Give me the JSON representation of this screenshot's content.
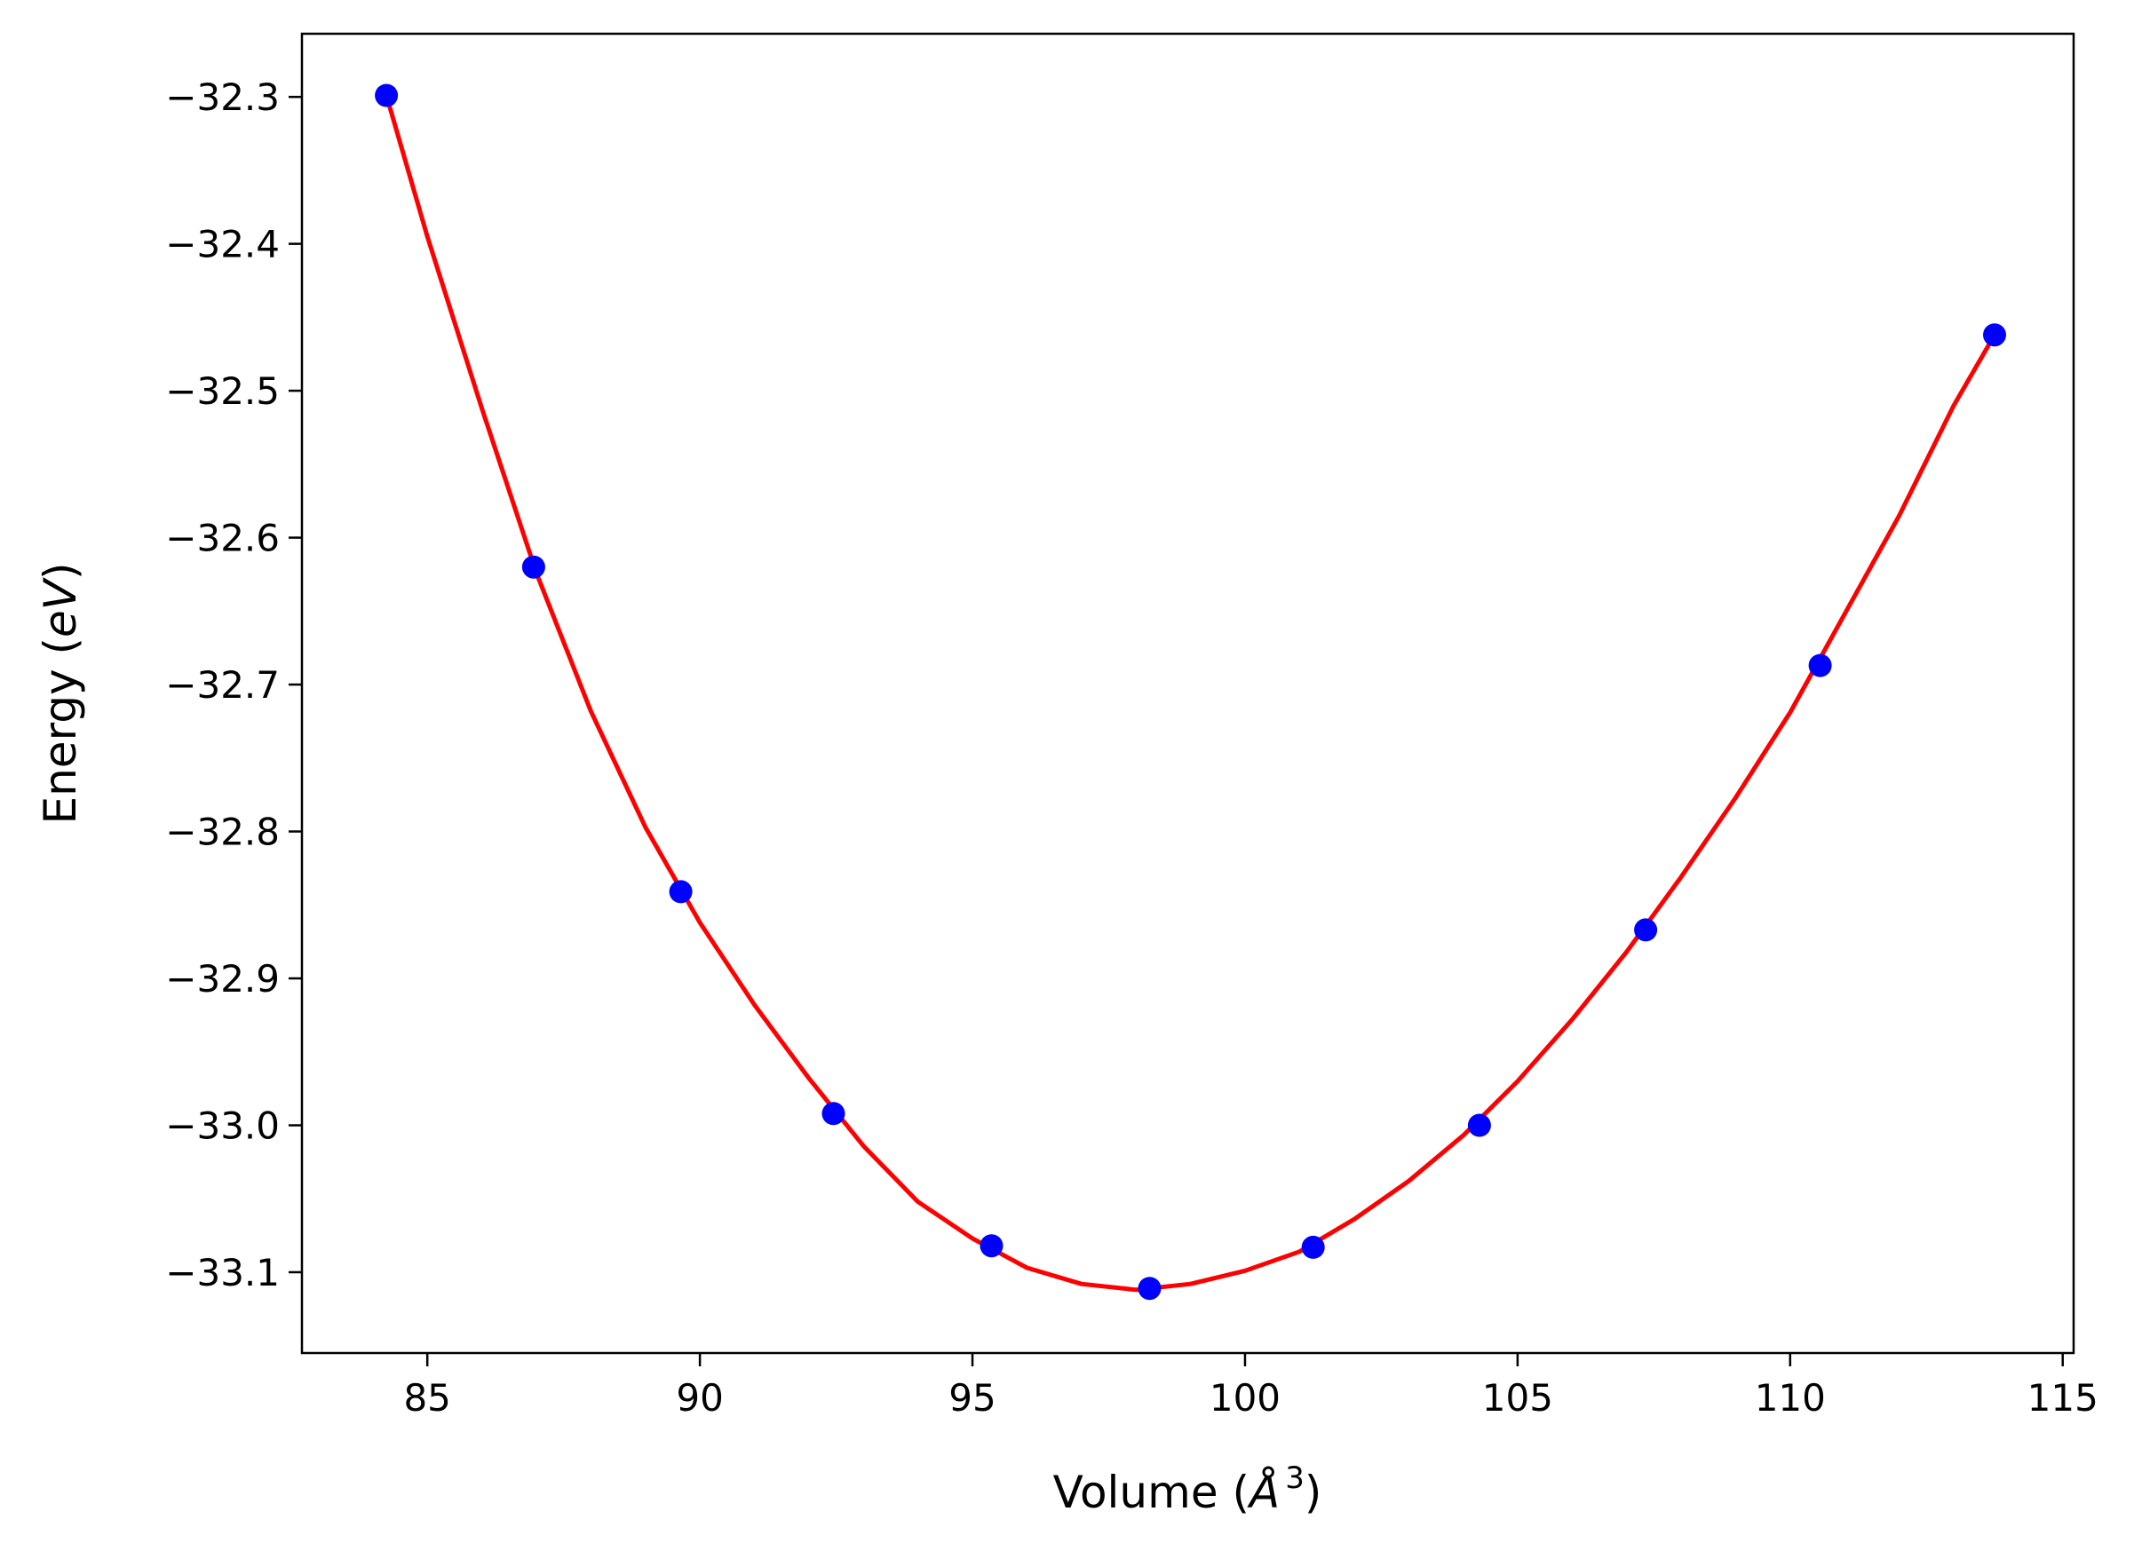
{
  "chart_data": {
    "type": "scatter",
    "title": "",
    "xlabel": {
      "prefix": "Volume (",
      "symbol": "Å",
      "superscript": "3",
      "suffix": ")"
    },
    "ylabel": {
      "prefix": "Energy (",
      "symbol": "eV",
      "suffix": ")"
    },
    "xlim": [
      82.7,
      115.2
    ],
    "ylim": [
      -33.155,
      -32.257
    ],
    "x_ticks": [
      {
        "value": 85,
        "label": "85"
      },
      {
        "value": 90,
        "label": "90"
      },
      {
        "value": 95,
        "label": "95"
      },
      {
        "value": 100,
        "label": "100"
      },
      {
        "value": 105,
        "label": "105"
      },
      {
        "value": 110,
        "label": "110"
      },
      {
        "value": 115,
        "label": "115"
      }
    ],
    "y_ticks": [
      {
        "value": -32.3,
        "label": "−32.3"
      },
      {
        "value": -32.4,
        "label": "−32.4"
      },
      {
        "value": -32.5,
        "label": "−32.5"
      },
      {
        "value": -32.6,
        "label": "−32.6"
      },
      {
        "value": -32.7,
        "label": "−32.7"
      },
      {
        "value": -32.8,
        "label": "−32.8"
      },
      {
        "value": -32.9,
        "label": "−32.9"
      },
      {
        "value": -33.0,
        "label": "−33.0"
      },
      {
        "value": -33.1,
        "label": "−33.1"
      }
    ],
    "grid": false,
    "series": [
      {
        "kind": "points",
        "color": "#0000ff",
        "x": [
          84.25,
          86.95,
          89.65,
          92.45,
          95.35,
          98.25,
          101.25,
          104.3,
          107.35,
          110.55,
          113.75
        ],
        "y": [
          -32.299,
          -32.62,
          -32.841,
          -32.992,
          -33.082,
          -33.111,
          -33.083,
          -33.0,
          -32.867,
          -32.687,
          -32.462
        ]
      },
      {
        "kind": "fit-line",
        "color": "#ff0000",
        "x": [
          84.25,
          85.0,
          86.0,
          87.0,
          88.0,
          89.0,
          90.0,
          91.0,
          92.0,
          93.0,
          94.0,
          95.0,
          96.0,
          97.0,
          98.0,
          99.0,
          100.0,
          101.0,
          102.0,
          103.0,
          104.0,
          105.0,
          106.0,
          107.0,
          108.0,
          109.0,
          110.0,
          111.0,
          112.0,
          113.0,
          113.75
        ],
        "y": [
          -32.299,
          -32.395,
          -32.512,
          -32.624,
          -32.718,
          -32.797,
          -32.862,
          -32.918,
          -32.968,
          -33.014,
          -33.052,
          -33.077,
          -33.097,
          -33.108,
          -33.112,
          -33.108,
          -33.099,
          -33.086,
          -33.064,
          -33.038,
          -33.007,
          -32.97,
          -32.928,
          -32.882,
          -32.831,
          -32.777,
          -32.719,
          -32.652,
          -32.585,
          -32.51,
          -32.462
        ]
      }
    ]
  }
}
